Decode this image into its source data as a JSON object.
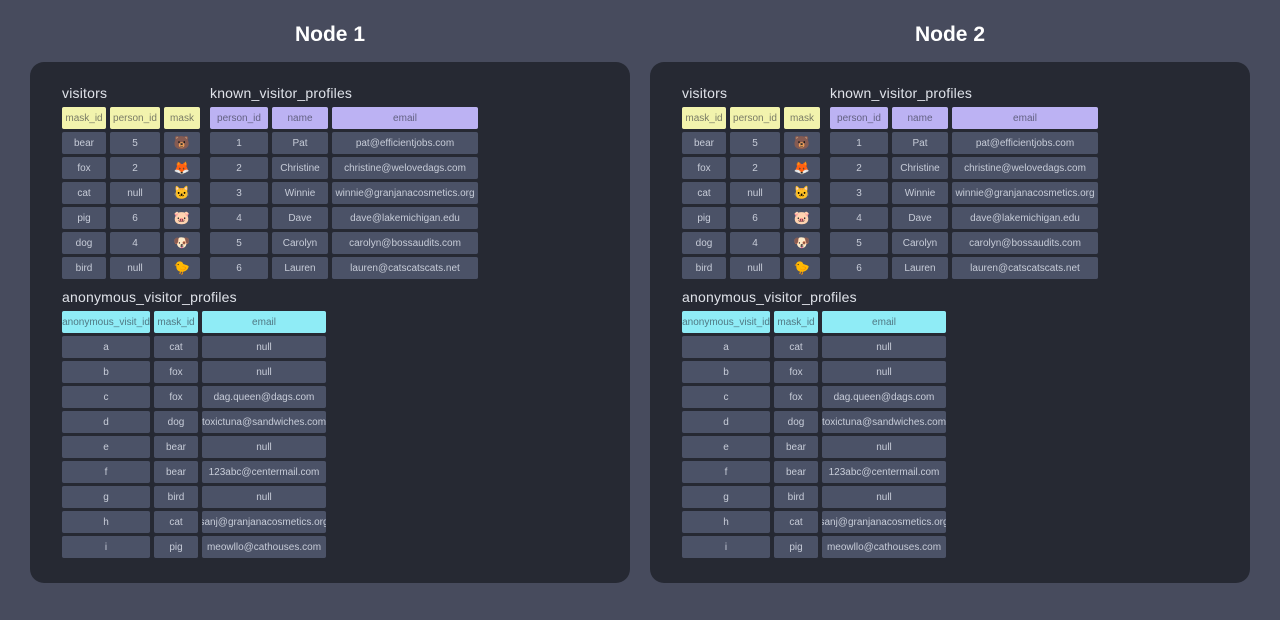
{
  "nodes": [
    {
      "title": "Node 1"
    },
    {
      "title": "Node 2"
    }
  ],
  "layout_tables": {
    "top": [
      "visitors",
      "known_visitor_profiles"
    ],
    "bottom": [
      "anonymous_visitor_profiles"
    ]
  },
  "colors": {
    "page_background": "#474B5D",
    "panel_background": "#262933",
    "cell_background": "#4B5267",
    "visitors_header": "#F2F3AD",
    "known_header": "#BCB2F3",
    "anonymous_header": "#8FECF6"
  },
  "tables": {
    "visitors": {
      "title": "visitors",
      "header_theme": "yellow",
      "columns": [
        "mask_id",
        "person_id",
        "mask"
      ],
      "rows": [
        [
          "bear",
          "5",
          "🐻"
        ],
        [
          "fox",
          "2",
          "🦊"
        ],
        [
          "cat",
          "null",
          "🐱"
        ],
        [
          "pig",
          "6",
          "🐷"
        ],
        [
          "dog",
          "4",
          "🐶"
        ],
        [
          "bird",
          "null",
          "🐤"
        ]
      ]
    },
    "known_visitor_profiles": {
      "title": "known_visitor_profiles",
      "header_theme": "purple",
      "columns": [
        "person_id",
        "name",
        "email"
      ],
      "rows": [
        [
          "1",
          "Pat",
          "pat@efficientjobs.com"
        ],
        [
          "2",
          "Christine",
          "christine@welovedags.com"
        ],
        [
          "3",
          "Winnie",
          "winnie@granjanacosmetics.org"
        ],
        [
          "4",
          "Dave",
          "dave@lakemichigan.edu"
        ],
        [
          "5",
          "Carolyn",
          "carolyn@bossaudits.com"
        ],
        [
          "6",
          "Lauren",
          "lauren@catscatscats.net"
        ]
      ]
    },
    "anonymous_visitor_profiles": {
      "title": "anonymous_visitor_profiles",
      "header_theme": "cyan",
      "columns": [
        "anonymous_visit_id",
        "mask_id",
        "email"
      ],
      "rows": [
        [
          "a",
          "cat",
          "null"
        ],
        [
          "b",
          "fox",
          "null"
        ],
        [
          "c",
          "fox",
          "dag.queen@dags.com"
        ],
        [
          "d",
          "dog",
          "toxictuna@sandwiches.com"
        ],
        [
          "e",
          "bear",
          "null"
        ],
        [
          "f",
          "bear",
          "123abc@centermail.com"
        ],
        [
          "g",
          "bird",
          "null"
        ],
        [
          "h",
          "cat",
          "sanj@granjanacosmetics.org"
        ],
        [
          "i",
          "pig",
          "meowllo@cathouses.com"
        ]
      ]
    }
  }
}
